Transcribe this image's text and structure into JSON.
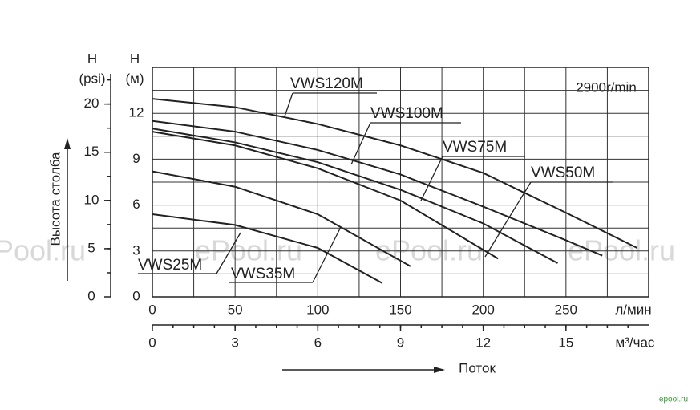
{
  "chart_data": {
    "type": "line",
    "y_axis_label": "Высота столба",
    "y_unit_letter": "H",
    "y_unit": "(м)",
    "y2_unit_letter": "H",
    "y2_unit": "(psi)",
    "x_unit": "л/мин",
    "x2_unit": "м³/час",
    "x_axis_label": "Поток",
    "annotation": "2900r/min",
    "watermark": "ePool.ru",
    "footer": "epool.ru",
    "xlim": [
      0,
      300
    ],
    "xticks": [
      0,
      50,
      100,
      150,
      200,
      250
    ],
    "xgrid": [
      25,
      75,
      125,
      175,
      225,
      275
    ],
    "x2lim": [
      0,
      18
    ],
    "x2ticks": [
      0,
      3,
      6,
      9,
      12,
      15
    ],
    "ylim": [
      0,
      15
    ],
    "yticks": [
      0,
      3,
      6,
      9,
      12
    ],
    "ygrid": [
      1.5,
      4.5,
      7.5,
      10.5,
      13.5
    ],
    "y2lim": [
      0,
      23.8
    ],
    "y2ticks": [
      0,
      5,
      10,
      15,
      20
    ],
    "grid": true,
    "series": [
      {
        "name": "VWS120M",
        "color": "#222222",
        "x": [
          0,
          50,
          100,
          150,
          200,
          250,
          293
        ],
        "values": [
          12.95,
          12.4,
          11.3,
          9.9,
          8.1,
          5.5,
          3.2
        ]
      },
      {
        "name": "VWS100M",
        "color": "#222222",
        "x": [
          0,
          50,
          100,
          150,
          200,
          250,
          272
        ],
        "values": [
          11.5,
          10.8,
          9.6,
          8.0,
          5.9,
          3.7,
          2.7
        ]
      },
      {
        "name": "VWS75M",
        "color": "#222222",
        "x": [
          0,
          50,
          100,
          150,
          200,
          245
        ],
        "values": [
          11.0,
          10.1,
          8.8,
          7.0,
          4.8,
          2.2
        ]
      },
      {
        "name": "VWS50M",
        "color": "#222222",
        "x": [
          0,
          50,
          100,
          150,
          209
        ],
        "values": [
          10.8,
          9.9,
          8.4,
          6.3,
          2.5
        ]
      },
      {
        "name": "VWS35M",
        "color": "#222222",
        "x": [
          0,
          50,
          100,
          156
        ],
        "values": [
          8.2,
          7.2,
          5.4,
          2.0
        ]
      },
      {
        "name": "VWS25M",
        "color": "#222222",
        "x": [
          0,
          50,
          100,
          139
        ],
        "values": [
          5.4,
          4.7,
          3.2,
          0.9
        ]
      }
    ]
  }
}
